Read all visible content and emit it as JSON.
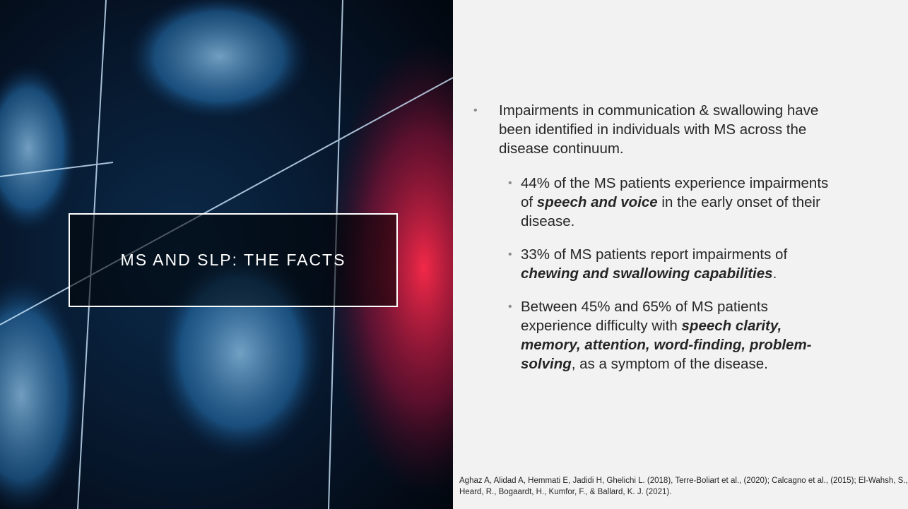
{
  "title": "MS AND SLP: THE FACTS",
  "bullets": [
    {
      "runs": [
        {
          "text": "Impairments in communication & swallowing have been identified in individuals with MS across the disease continuum.",
          "emphasis": false
        }
      ]
    },
    {
      "runs": [
        {
          "text": "44% of the MS patients experience impairments of ",
          "emphasis": false
        },
        {
          "text": "speech and voice",
          "emphasis": true
        },
        {
          "text": " in the early onset of their disease.",
          "emphasis": false
        }
      ]
    },
    {
      "runs": [
        {
          "text": "33% of MS patients report impairments of ",
          "emphasis": false
        },
        {
          "text": "chewing and swallowing capabilities",
          "emphasis": true
        },
        {
          "text": ".",
          "emphasis": false
        }
      ]
    },
    {
      "runs": [
        {
          "text": "Between 45% and 65% of MS patients experience difficulty with ",
          "emphasis": false
        },
        {
          "text": "speech clarity, memory, attention, word-finding, problem-solving",
          "emphasis": true
        },
        {
          "text": ", as a symptom of the disease.",
          "emphasis": false
        }
      ]
    }
  ],
  "citation": "Aghaz A, Alidad A, Hemmati E, Jadidi H, Ghelichi L. (2018), Terre-Boliart et al., (2020); Calcagno et al., (2015); El-Wahsh, S., Heard, R., Bogaardt, H., Kumfor, F., & Ballard, K. J. (2021)."
}
